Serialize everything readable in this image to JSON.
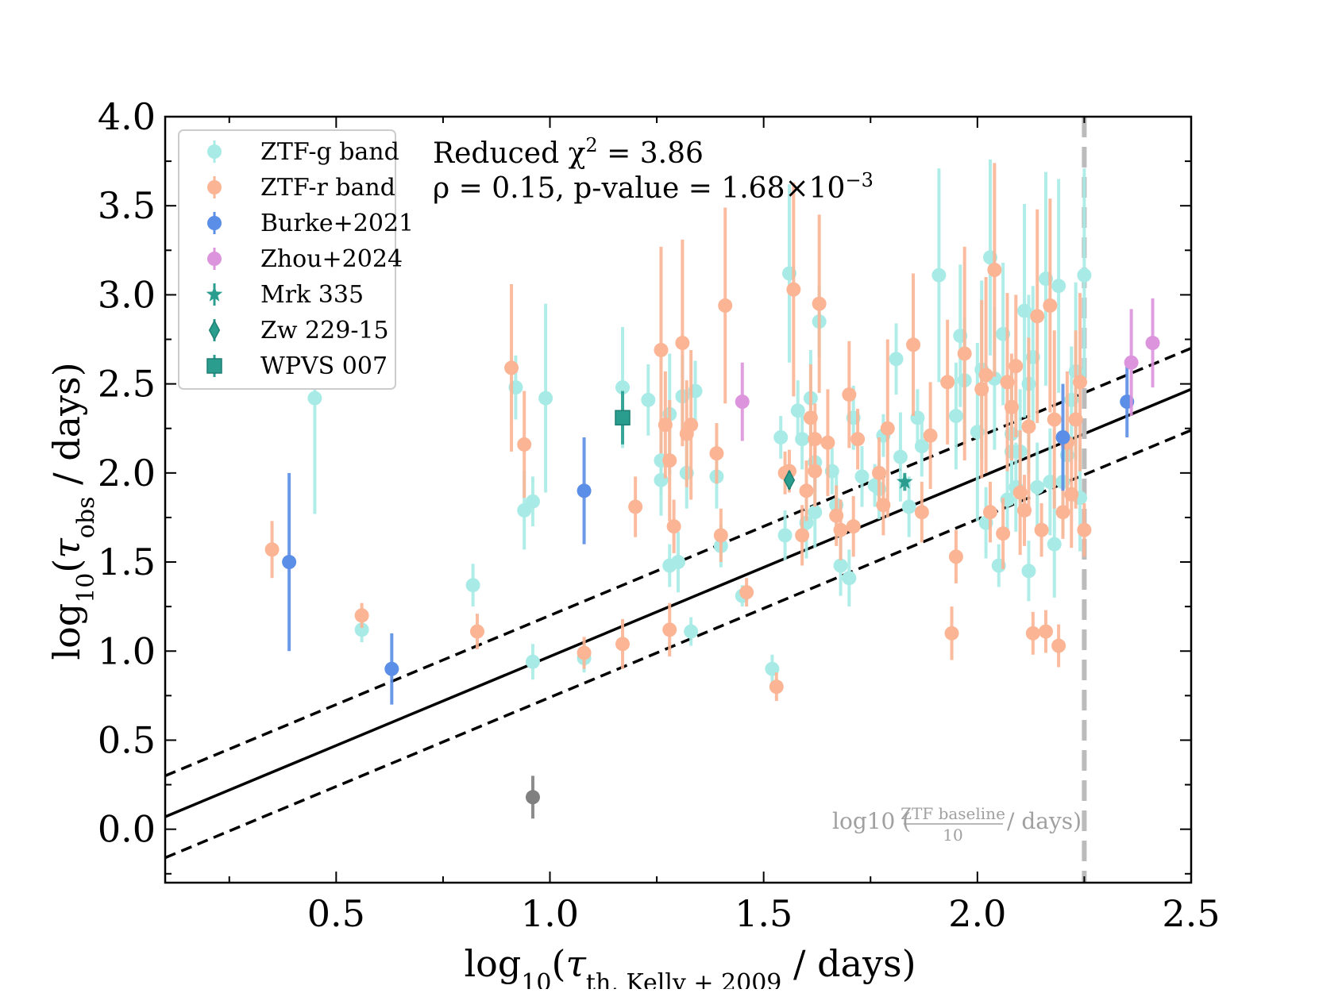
{
  "chart_data": {
    "type": "scatter",
    "title": "",
    "xlabel": "log10(τth, Kelly+2009 / days)",
    "xlabel_parts": {
      "log": "log",
      "sub10": "10",
      "tau": "τ",
      "subscript": "th, Kelly + 2009",
      "unit": " / days)"
    },
    "ylabel": "log10(τobs / days)",
    "ylabel_parts": {
      "log": "log",
      "sub10": "10",
      "tau": "τ",
      "subscript": "obs",
      "unit": " / days)"
    },
    "xlim": [
      0.1,
      2.5
    ],
    "ylim": [
      -0.3,
      4.0
    ],
    "xticks": [
      0.5,
      1.0,
      1.5,
      2.0,
      2.5
    ],
    "xtick_labels": [
      "0.5",
      "1.0",
      "1.5",
      "2.0",
      "2.5"
    ],
    "yticks": [
      0.0,
      0.5,
      1.0,
      1.5,
      2.0,
      2.5,
      3.0,
      3.5,
      4.0
    ],
    "ytick_labels": [
      "0.0",
      "0.5",
      "1.0",
      "1.5",
      "2.0",
      "2.5",
      "3.0",
      "3.5",
      "4.0"
    ],
    "grid": false,
    "legend_position": "top-left",
    "stats": {
      "chi_label": "Reduced χ",
      "chi_sup": "2",
      "chi_value": " = 3.86",
      "rho_text": "ρ = 0.15, p-value = 1.68×10",
      "rho_sup": "−3"
    },
    "baseline": {
      "x": 2.25,
      "label_main": "log10 (",
      "label_num": "ZTF baseline",
      "label_den": "10",
      "label_tail": "/ days)",
      "color": "#bbbbbb"
    },
    "lines": [
      {
        "name": "one-to-one",
        "slope": 1.0,
        "intercept": -0.03,
        "style": "solid"
      },
      {
        "name": "upper",
        "slope": 1.0,
        "intercept": 0.2,
        "style": "dashed"
      },
      {
        "name": "lower",
        "slope": 1.0,
        "intercept": -0.26,
        "style": "dashed"
      }
    ],
    "outlier": {
      "x": 0.96,
      "y": 0.18,
      "err": 0.12,
      "color": "#808080"
    },
    "series": [
      {
        "name": "ZTF-g band",
        "color": "#a8ebe6",
        "marker": "circle",
        "points": [
          [
            0.45,
            2.42,
            0.65
          ],
          [
            0.56,
            1.12,
            0.07
          ],
          [
            0.82,
            1.37,
            0.12
          ],
          [
            0.92,
            2.48,
            0.18
          ],
          [
            0.94,
            1.79,
            0.22
          ],
          [
            0.96,
            1.84,
            0.14
          ],
          [
            0.96,
            0.94,
            0.1
          ],
          [
            0.99,
            2.42,
            0.53
          ],
          [
            1.08,
            0.96,
            0.08
          ],
          [
            1.17,
            2.48,
            0.34
          ],
          [
            1.23,
            2.41,
            0.2
          ],
          [
            1.26,
            2.07,
            0.2
          ],
          [
            1.26,
            1.96,
            0.2
          ],
          [
            1.28,
            2.33,
            0.34
          ],
          [
            1.28,
            1.48,
            0.12
          ],
          [
            1.3,
            1.5,
            0.17
          ],
          [
            1.31,
            2.43,
            0.23
          ],
          [
            1.33,
            1.11,
            0.08
          ],
          [
            1.32,
            2.0,
            0.2
          ],
          [
            1.34,
            2.46,
            0.17
          ],
          [
            1.39,
            1.98,
            0.18
          ],
          [
            1.4,
            1.59,
            0.12
          ],
          [
            1.45,
            1.31,
            0.06
          ],
          [
            1.52,
            0.9,
            0.08
          ],
          [
            1.54,
            2.2,
            0.12
          ],
          [
            1.55,
            1.65,
            0.14
          ],
          [
            1.56,
            3.12,
            0.5
          ],
          [
            1.58,
            2.35,
            0.17
          ],
          [
            1.59,
            2.19,
            0.17
          ],
          [
            1.6,
            1.72,
            0.2
          ],
          [
            1.61,
            2.42,
            0.27
          ],
          [
            1.62,
            2.06,
            0.17
          ],
          [
            1.62,
            1.78,
            0.2
          ],
          [
            1.63,
            2.85,
            0.2
          ],
          [
            1.66,
            2.01,
            0.13
          ],
          [
            1.67,
            1.82,
            0.17
          ],
          [
            1.68,
            1.48,
            0.17
          ],
          [
            1.7,
            1.41,
            0.16
          ],
          [
            1.71,
            2.31,
            0.18
          ],
          [
            1.73,
            1.98,
            0.17
          ],
          [
            1.76,
            1.93,
            0.12
          ],
          [
            1.77,
            1.91,
            0.17
          ],
          [
            1.78,
            2.21,
            0.12
          ],
          [
            1.81,
            2.64,
            0.2
          ],
          [
            1.82,
            2.09,
            0.25
          ],
          [
            1.84,
            1.81,
            0.17
          ],
          [
            1.86,
            2.31,
            0.16
          ],
          [
            1.87,
            2.15,
            0.17
          ],
          [
            1.91,
            3.11,
            0.6
          ],
          [
            1.95,
            2.32,
            0.3
          ],
          [
            1.96,
            2.77,
            0.4
          ],
          [
            1.97,
            2.52,
            0.35
          ],
          [
            2.0,
            2.23,
            0.5
          ],
          [
            2.01,
            2.58,
            0.5
          ],
          [
            2.02,
            1.72,
            0.2
          ],
          [
            2.03,
            3.21,
            0.55
          ],
          [
            2.04,
            2.53,
            0.4
          ],
          [
            2.05,
            1.48,
            0.12
          ],
          [
            2.06,
            2.78,
            0.4
          ],
          [
            2.07,
            1.85,
            0.2
          ],
          [
            2.08,
            2.22,
            0.4
          ],
          [
            2.08,
            2.12,
            0.3
          ],
          [
            2.09,
            1.92,
            0.25
          ],
          [
            2.1,
            2.12,
            0.35
          ],
          [
            2.11,
            2.91,
            0.6
          ],
          [
            2.12,
            1.45,
            0.17
          ],
          [
            2.12,
            2.5,
            0.5
          ],
          [
            2.13,
            2.65,
            0.4
          ],
          [
            2.14,
            1.92,
            0.25
          ],
          [
            2.16,
            3.09,
            0.6
          ],
          [
            2.17,
            1.95,
            0.3
          ],
          [
            2.18,
            1.6,
            0.3
          ],
          [
            2.19,
            3.05,
            0.6
          ],
          [
            2.2,
            1.95,
            0.3
          ],
          [
            2.21,
            2.1,
            0.25
          ],
          [
            2.22,
            2.41,
            0.3
          ],
          [
            2.23,
            2.57,
            0.5
          ],
          [
            2.24,
            1.86,
            0.3
          ],
          [
            2.25,
            3.11,
            0.6
          ]
        ]
      },
      {
        "name": "ZTF-r band",
        "color": "#fbb494",
        "marker": "circle",
        "points": [
          [
            0.35,
            1.57,
            0.16
          ],
          [
            0.56,
            1.2,
            0.07
          ],
          [
            0.83,
            1.11,
            0.1
          ],
          [
            0.91,
            2.59,
            0.47
          ],
          [
            0.94,
            2.16,
            0.3
          ],
          [
            1.08,
            0.99,
            0.09
          ],
          [
            1.17,
            1.04,
            0.14
          ],
          [
            1.2,
            1.81,
            0.17
          ],
          [
            1.26,
            2.69,
            0.58
          ],
          [
            1.27,
            2.27,
            0.3
          ],
          [
            1.28,
            2.07,
            0.34
          ],
          [
            1.28,
            1.12,
            0.15
          ],
          [
            1.29,
            1.7,
            0.15
          ],
          [
            1.31,
            2.73,
            0.58
          ],
          [
            1.32,
            2.22,
            0.3
          ],
          [
            1.33,
            2.27,
            0.42
          ],
          [
            1.39,
            2.11,
            0.17
          ],
          [
            1.4,
            1.65,
            0.15
          ],
          [
            1.41,
            2.94,
            0.55
          ],
          [
            1.46,
            1.33,
            0.08
          ],
          [
            1.53,
            0.8,
            0.08
          ],
          [
            1.55,
            2.0,
            0.12
          ],
          [
            1.56,
            2.01,
            0.12
          ],
          [
            1.57,
            3.03,
            0.6
          ],
          [
            1.59,
            1.65,
            0.17
          ],
          [
            1.6,
            1.9,
            0.17
          ],
          [
            1.61,
            2.31,
            0.3
          ],
          [
            1.62,
            2.19,
            0.2
          ],
          [
            1.62,
            2.01,
            0.2
          ],
          [
            1.63,
            2.95,
            0.5
          ],
          [
            1.65,
            2.17,
            0.3
          ],
          [
            1.67,
            1.76,
            0.17
          ],
          [
            1.68,
            1.68,
            0.17
          ],
          [
            1.7,
            2.44,
            0.3
          ],
          [
            1.71,
            1.7,
            0.17
          ],
          [
            1.72,
            2.19,
            0.17
          ],
          [
            1.77,
            2.0,
            0.2
          ],
          [
            1.78,
            1.82,
            0.17
          ],
          [
            1.79,
            2.25,
            0.5
          ],
          [
            1.85,
            2.72,
            0.4
          ],
          [
            1.87,
            1.78,
            0.17
          ],
          [
            1.89,
            2.21,
            0.3
          ],
          [
            1.93,
            2.51,
            0.35
          ],
          [
            1.94,
            1.1,
            0.15
          ],
          [
            1.95,
            1.53,
            0.15
          ],
          [
            1.97,
            2.67,
            0.6
          ],
          [
            2.01,
            2.47,
            0.5
          ],
          [
            2.02,
            2.55,
            0.55
          ],
          [
            2.03,
            1.78,
            0.17
          ],
          [
            2.04,
            3.14,
            0.6
          ],
          [
            2.06,
            1.66,
            0.2
          ],
          [
            2.07,
            2.51,
            0.5
          ],
          [
            2.08,
            2.37,
            0.3
          ],
          [
            2.09,
            2.6,
            0.4
          ],
          [
            2.1,
            1.89,
            0.35
          ],
          [
            2.11,
            1.79,
            0.2
          ],
          [
            2.12,
            2.26,
            0.5
          ],
          [
            2.13,
            1.1,
            0.12
          ],
          [
            2.14,
            2.88,
            0.6
          ],
          [
            2.15,
            1.68,
            0.15
          ],
          [
            2.16,
            1.11,
            0.12
          ],
          [
            2.17,
            2.94,
            0.6
          ],
          [
            2.18,
            2.3,
            0.5
          ],
          [
            2.19,
            1.03,
            0.12
          ],
          [
            2.2,
            1.78,
            0.15
          ],
          [
            2.21,
            2.17,
            0.4
          ],
          [
            2.22,
            1.88,
            0.3
          ],
          [
            2.23,
            2.3,
            0.5
          ],
          [
            2.24,
            2.51,
            0.5
          ],
          [
            2.25,
            1.68,
            0.15
          ]
        ]
      },
      {
        "name": "Burke+2021",
        "color": "#5b8ee6",
        "marker": "circle",
        "points": [
          [
            0.39,
            1.5,
            0.5
          ],
          [
            0.63,
            0.9,
            0.2
          ],
          [
            1.08,
            1.9,
            0.3
          ],
          [
            2.2,
            2.2,
            0.3
          ],
          [
            2.35,
            2.4,
            0.2
          ]
        ]
      },
      {
        "name": "Zhou+2024",
        "color": "#dc94dc",
        "marker": "circle",
        "points": [
          [
            1.45,
            2.4,
            0.22
          ],
          [
            2.36,
            2.62,
            0.3
          ],
          [
            2.41,
            2.73,
            0.25
          ]
        ]
      },
      {
        "name": "Mrk 335",
        "color": "#2a9d8f",
        "marker": "star",
        "points": [
          [
            1.83,
            1.95,
            0.05
          ]
        ]
      },
      {
        "name": "Zw 229-15",
        "color": "#2a9d8f",
        "marker": "diamond",
        "points": [
          [
            1.56,
            1.96,
            0.05
          ]
        ]
      },
      {
        "name": "WPVS 007",
        "color": "#2a9d8f",
        "marker": "square",
        "points": [
          [
            1.17,
            2.31,
            0.15
          ]
        ]
      }
    ]
  }
}
